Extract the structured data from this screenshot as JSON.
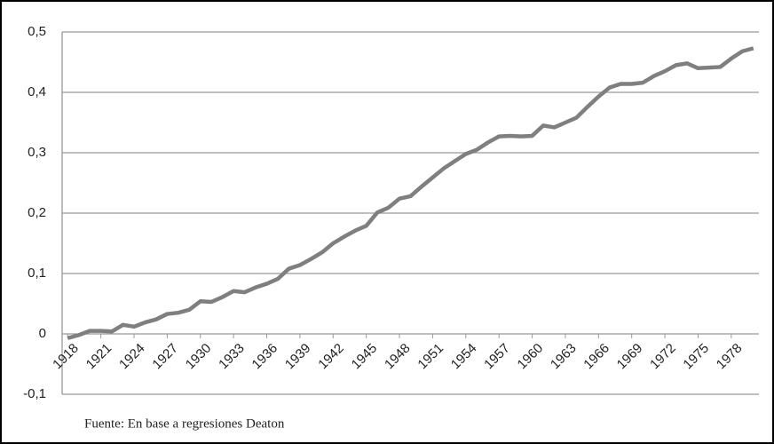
{
  "chart_data": {
    "type": "line",
    "source": "Fuente: En base a regresiones Deaton",
    "x": [
      1918,
      1919,
      1920,
      1921,
      1922,
      1923,
      1924,
      1925,
      1926,
      1927,
      1928,
      1929,
      1930,
      1931,
      1932,
      1933,
      1934,
      1935,
      1936,
      1937,
      1938,
      1939,
      1940,
      1941,
      1942,
      1943,
      1944,
      1945,
      1946,
      1947,
      1948,
      1949,
      1950,
      1951,
      1952,
      1953,
      1954,
      1955,
      1956,
      1957,
      1958,
      1959,
      1960,
      1961,
      1962,
      1963,
      1964,
      1965,
      1966,
      1967,
      1968,
      1969,
      1970,
      1971,
      1972,
      1973,
      1974,
      1975,
      1976,
      1977,
      1978,
      1979,
      1980
    ],
    "values": [
      -0.007,
      -0.002,
      0.005,
      0.005,
      0.004,
      0.015,
      0.012,
      0.019,
      0.024,
      0.033,
      0.035,
      0.04,
      0.054,
      0.053,
      0.061,
      0.071,
      0.069,
      0.077,
      0.083,
      0.091,
      0.108,
      0.114,
      0.124,
      0.135,
      0.15,
      0.161,
      0.171,
      0.179,
      0.201,
      0.209,
      0.224,
      0.228,
      0.244,
      0.259,
      0.274,
      0.286,
      0.298,
      0.305,
      0.317,
      0.327,
      0.328,
      0.327,
      0.328,
      0.345,
      0.342,
      0.35,
      0.358,
      0.376,
      0.393,
      0.408,
      0.414,
      0.414,
      0.416,
      0.427,
      0.435,
      0.445,
      0.448,
      0.44,
      0.441,
      0.442,
      0.456,
      0.468,
      0.473
    ],
    "color": "#7f7f7f",
    "xlim": [
      1917.5,
      1980.5
    ],
    "xticks": [
      1918,
      1921,
      1924,
      1927,
      1930,
      1933,
      1936,
      1939,
      1942,
      1945,
      1948,
      1951,
      1954,
      1957,
      1960,
      1963,
      1966,
      1969,
      1972,
      1975,
      1978
    ],
    "ylim": [
      -0.1,
      0.5
    ],
    "yticks": [
      {
        "value": -0.1,
        "label": "-0,1"
      },
      0,
      {
        "value": 0.1,
        "label": "0,1"
      },
      {
        "value": 0.2,
        "label": "0,2"
      },
      {
        "value": 0.3,
        "label": "0,3"
      },
      {
        "value": 0.4,
        "label": "0,4"
      },
      {
        "value": 0.5,
        "label": "0,5"
      }
    ],
    "grid": true
  }
}
